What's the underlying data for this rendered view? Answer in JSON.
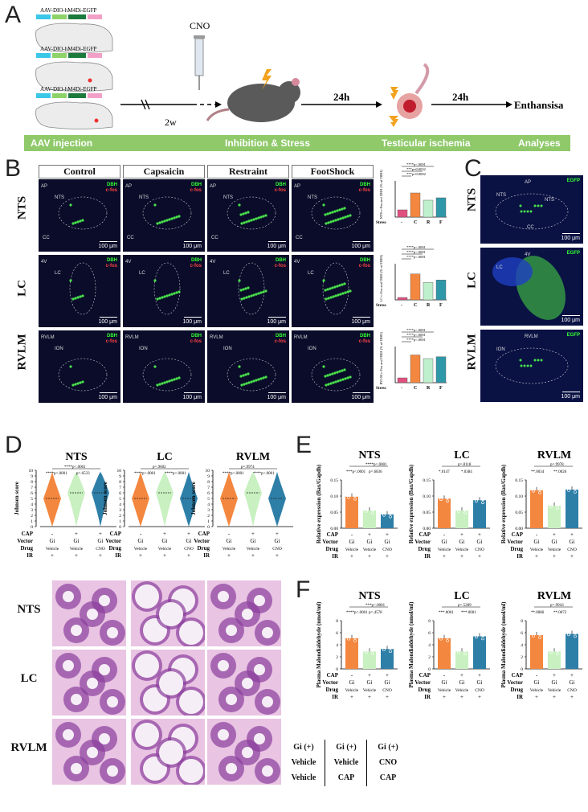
{
  "panel_letters": [
    "A",
    "B",
    "C",
    "D",
    "E",
    "F"
  ],
  "panel_a": {
    "vectors": [
      "AAV-DIO-hM4Di-EGFP",
      "AAV-DIO-hM4Di-EGFP",
      "AAV-DIO-hM4Di-EGFP"
    ],
    "cno_label": "CNO",
    "wait_label": "2w",
    "interval_1": "24h",
    "interval_2": "24h",
    "endpoint": "Enthansisa",
    "stages": [
      "AAV injection",
      "Inhibition & Stress",
      "Testicular ischemia",
      "Analyses"
    ]
  },
  "panel_b": {
    "columns": [
      "Control",
      "Capsaicin",
      "Restraint",
      "FootShock"
    ],
    "rows": [
      "NTS",
      "LC",
      "RVLM"
    ],
    "stain_labels": [
      "DBH",
      "c-fos"
    ],
    "scale_bar": "100 μm",
    "region_tags": {
      "NTS": [
        "AP",
        "NTS",
        "CC"
      ],
      "LC": [
        "4V",
        "LC"
      ],
      "RVLM": [
        "RVLM",
        "ION"
      ]
    }
  },
  "panel_c": {
    "rows": [
      "NTS",
      "LC",
      "RVLM"
    ],
    "stain_label": "EGFP",
    "scale_bar": "100 μm",
    "region_tags": {
      "NTS": [
        "AP",
        "NTS",
        "NTS",
        "CC"
      ],
      "LC": [
        "4V",
        "LC"
      ],
      "RVLM": [
        "RVLM",
        "ION"
      ]
    }
  },
  "panel_d_histo": {
    "rows": [
      "NTS",
      "LC",
      "RVLM"
    ],
    "legend": [
      [
        "Gi (+)",
        "Vehicle",
        "Vehicle"
      ],
      [
        "Gi (+)",
        "Vehicle",
        "CAP"
      ],
      [
        "Gi (+)",
        "CNO",
        "CAP"
      ]
    ]
  },
  "design_rows": {
    "labels": [
      "CAP",
      "Vector",
      "Drug",
      "IR"
    ],
    "groups": [
      [
        "-",
        "Gi",
        "Vehicle",
        "+"
      ],
      [
        "+",
        "Gi",
        "Vehicle",
        "+"
      ],
      [
        "+",
        "Gi",
        "CNO",
        "+"
      ]
    ]
  },
  "colors": {
    "group1": "#f4873f",
    "group2": "#c8f0c0",
    "group3": "#2e7fa8",
    "stage_bar": "#8fc96a",
    "cfos_control": "#e0507f"
  },
  "chart_data": [
    {
      "type": "bar",
      "panel": "B",
      "title": "",
      "ylabel": "NTS c-Fos and DBH (% of DBH)",
      "ylim": [
        0,
        30
      ],
      "categories": [
        "-",
        "C",
        "R",
        "F"
      ],
      "xlabel": "Stress",
      "values": [
        6,
        20,
        14,
        16
      ],
      "stats": [
        "****p<.0001",
        "***p=0.0032",
        "***p=0.0002"
      ]
    },
    {
      "type": "bar",
      "panel": "B",
      "title": "",
      "ylabel": "LC c-Fos and DBH (% of DBH)",
      "ylim": [
        0,
        60
      ],
      "categories": [
        "-",
        "C",
        "R",
        "F"
      ],
      "xlabel": "Stress",
      "values": [
        4,
        43,
        29,
        33
      ],
      "stats": [
        "****p<.0001",
        "****p<.0001",
        "****p<.0001"
      ]
    },
    {
      "type": "bar",
      "panel": "B",
      "title": "",
      "ylabel": "RVLM c-Fos and DBH (% of DBH)",
      "ylim": [
        0,
        60
      ],
      "categories": [
        "-",
        "C",
        "R",
        "F"
      ],
      "xlabel": "Stress",
      "values": [
        8,
        46,
        40,
        43
      ],
      "stats": [
        "****p<.0001",
        "****p<.0001",
        "****p<.0001"
      ]
    },
    {
      "type": "violin",
      "panel": "D",
      "title": "NTS",
      "ylabel": "Johnsen score",
      "ylim": [
        0,
        10
      ],
      "yticks": [
        0,
        1,
        2,
        3,
        4,
        5,
        6,
        7,
        8,
        9,
        10
      ],
      "medians": [
        5,
        6,
        6
      ],
      "stats": [
        "****p<.0001",
        "****p<.0001",
        "p=.6533"
      ]
    },
    {
      "type": "violin",
      "panel": "D",
      "title": "LC",
      "ylabel": "Johnsen score",
      "ylim": [
        0,
        10
      ],
      "yticks": [
        0,
        1,
        2,
        3,
        4,
        5,
        6,
        7,
        8,
        9,
        10
      ],
      "medians": [
        5,
        6,
        5
      ],
      "stats": [
        "p=.9602",
        "****p<.0001",
        "****p<.0001"
      ]
    },
    {
      "type": "violin",
      "panel": "D",
      "title": "RVLM",
      "ylabel": "Johnsen score",
      "ylim": [
        0,
        10
      ],
      "yticks": [
        0,
        1,
        2,
        3,
        4,
        5,
        6,
        7,
        8,
        9,
        10
      ],
      "medians": [
        5,
        6,
        5
      ],
      "stats": [
        "p=.9974",
        "****p<.0001",
        "****p<.0001"
      ]
    },
    {
      "type": "bar",
      "panel": "E",
      "title": "NTS",
      "ylabel": "Relative expression (Bax/Gapdh)",
      "ylim": [
        0,
        0.15
      ],
      "yticks": [
        0.0,
        0.05,
        0.1,
        0.15
      ],
      "values": [
        0.098,
        0.055,
        0.043
      ],
      "stats": [
        "****p<.0001",
        "***p<.0001",
        "p=.6836"
      ]
    },
    {
      "type": "bar",
      "panel": "E",
      "title": "LC",
      "ylabel": "Relative expression (Bax/Gapdh)",
      "ylim": [
        0,
        0.15
      ],
      "yticks": [
        0.0,
        0.05,
        0.1,
        0.15
      ],
      "values": [
        0.092,
        0.055,
        0.087
      ],
      "stats": [
        "p=.8118",
        "*.0147",
        "*.0384"
      ]
    },
    {
      "type": "bar",
      "panel": "E",
      "title": "RVLM",
      "ylabel": "Relative expression (Bax/Gapdh)",
      "ylim": [
        0,
        0.15
      ],
      "yticks": [
        0.0,
        0.05,
        0.1,
        0.15
      ],
      "values": [
        0.118,
        0.07,
        0.12
      ],
      "stats": [
        "p=.9978",
        "**.0034",
        "**.0026"
      ]
    },
    {
      "type": "bar",
      "panel": "F",
      "title": "NTS",
      "ylabel": "Plasma Malondialdehyde (nmol/ml)",
      "ylim": [
        0,
        8
      ],
      "yticks": [
        0,
        2,
        4,
        6,
        8
      ],
      "values": [
        5.1,
        2.9,
        3.3
      ],
      "stats": [
        "***p<.0001",
        "****p<.0001",
        "p=.4578"
      ]
    },
    {
      "type": "bar",
      "panel": "F",
      "title": "LC",
      "ylabel": "Plasma Malondialdehyde (nmol/ml)",
      "ylim": [
        0,
        8
      ],
      "yticks": [
        0,
        2,
        4,
        6,
        8
      ],
      "values": [
        5.1,
        2.9,
        5.4
      ],
      "stats": [
        "p=.5289",
        "***.0001",
        "***.0001"
      ]
    },
    {
      "type": "bar",
      "panel": "F",
      "title": "RVLM",
      "ylabel": "Plasma Malondialdehyde (nmol/ml)",
      "ylim": [
        0,
        8
      ],
      "yticks": [
        0,
        2,
        4,
        6,
        8
      ],
      "values": [
        5.6,
        2.9,
        5.8
      ],
      "stats": [
        "p=.9916",
        "**.0086",
        "**.0072"
      ]
    }
  ]
}
